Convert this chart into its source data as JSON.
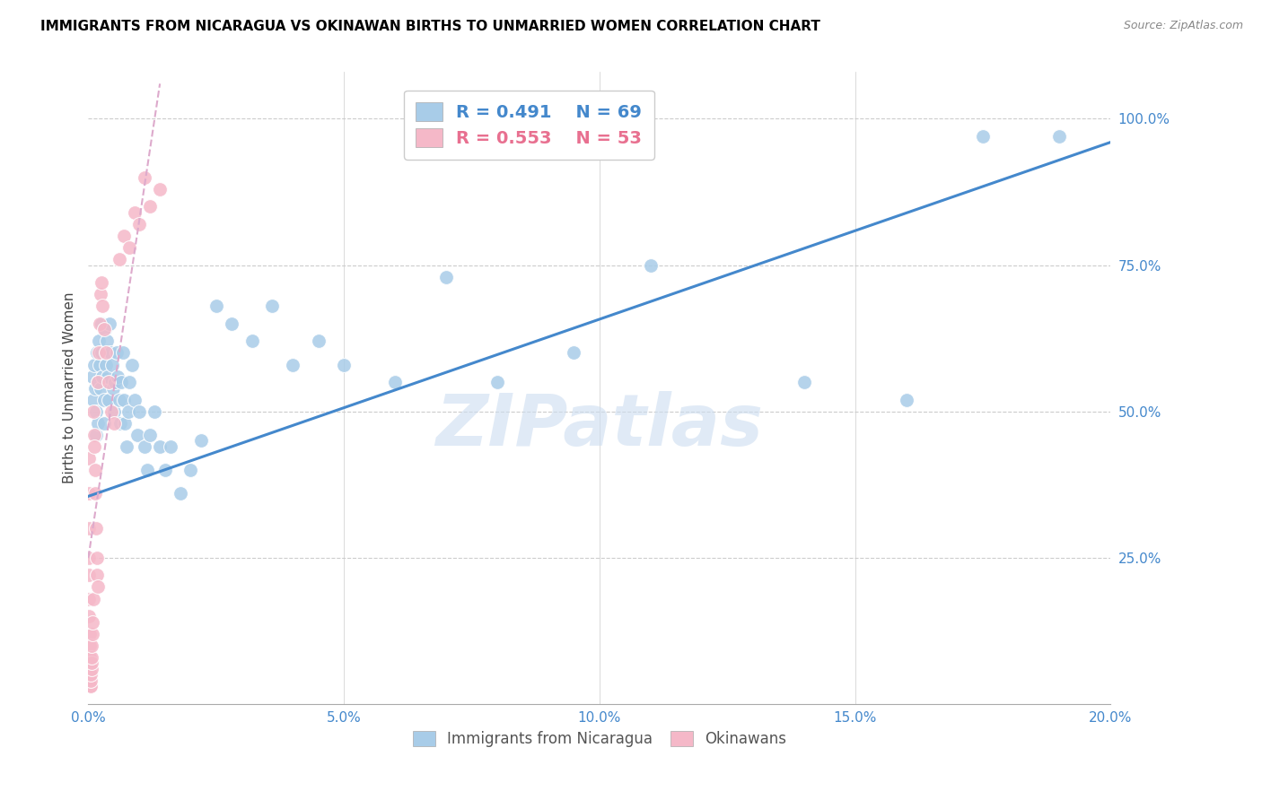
{
  "title": "IMMIGRANTS FROM NICARAGUA VS OKINAWAN BIRTHS TO UNMARRIED WOMEN CORRELATION CHART",
  "source": "Source: ZipAtlas.com",
  "xlabel_blue": "Immigrants from Nicaragua",
  "xlabel_pink": "Okinawans",
  "ylabel": "Births to Unmarried Women",
  "x_min": 0.0,
  "x_max": 0.2,
  "y_min": 0.0,
  "y_max": 1.08,
  "yticks": [
    0.25,
    0.5,
    0.75,
    1.0
  ],
  "ytick_labels": [
    "25.0%",
    "50.0%",
    "75.0%",
    "100.0%"
  ],
  "xticks": [
    0.0,
    0.05,
    0.1,
    0.15,
    0.2
  ],
  "xtick_labels": [
    "0.0%",
    "5.0%",
    "10.0%",
    "15.0%",
    "20.0%"
  ],
  "blue_R": 0.491,
  "blue_N": 69,
  "pink_R": 0.553,
  "pink_N": 53,
  "blue_color": "#a8cce8",
  "pink_color": "#f5b8c8",
  "blue_line_color": "#4488cc",
  "pink_line_color": "#e87090",
  "watermark": "ZIPatlas",
  "blue_scatter_x": [
    0.0008,
    0.001,
    0.0012,
    0.0013,
    0.0015,
    0.0015,
    0.0016,
    0.0018,
    0.0018,
    0.002,
    0.0022,
    0.0024,
    0.0025,
    0.0026,
    0.0028,
    0.003,
    0.003,
    0.0032,
    0.0034,
    0.0036,
    0.0038,
    0.004,
    0.0042,
    0.0044,
    0.0046,
    0.0048,
    0.005,
    0.0052,
    0.0055,
    0.0058,
    0.006,
    0.0062,
    0.0065,
    0.0068,
    0.007,
    0.0072,
    0.0075,
    0.0078,
    0.008,
    0.0085,
    0.009,
    0.0095,
    0.01,
    0.011,
    0.0115,
    0.012,
    0.013,
    0.014,
    0.015,
    0.016,
    0.018,
    0.02,
    0.022,
    0.025,
    0.028,
    0.032,
    0.036,
    0.04,
    0.045,
    0.05,
    0.06,
    0.07,
    0.08,
    0.095,
    0.11,
    0.14,
    0.16,
    0.175,
    0.19
  ],
  "blue_scatter_y": [
    0.56,
    0.52,
    0.58,
    0.54,
    0.5,
    0.46,
    0.6,
    0.55,
    0.48,
    0.62,
    0.58,
    0.54,
    0.65,
    0.6,
    0.56,
    0.52,
    0.48,
    0.64,
    0.58,
    0.62,
    0.56,
    0.52,
    0.65,
    0.6,
    0.58,
    0.54,
    0.5,
    0.55,
    0.6,
    0.56,
    0.52,
    0.48,
    0.55,
    0.6,
    0.52,
    0.48,
    0.44,
    0.5,
    0.55,
    0.58,
    0.52,
    0.46,
    0.5,
    0.44,
    0.4,
    0.46,
    0.5,
    0.44,
    0.4,
    0.44,
    0.36,
    0.4,
    0.45,
    0.68,
    0.65,
    0.62,
    0.68,
    0.58,
    0.62,
    0.58,
    0.55,
    0.73,
    0.55,
    0.6,
    0.75,
    0.55,
    0.52,
    0.97,
    0.97
  ],
  "pink_scatter_x": [
    5e-05,
    8e-05,
    0.0001,
    0.00012,
    0.00014,
    0.00016,
    0.00018,
    0.0002,
    0.00022,
    0.00025,
    0.00028,
    0.0003,
    0.00033,
    0.00036,
    0.0004,
    0.00044,
    0.00048,
    0.00052,
    0.00056,
    0.0006,
    0.00065,
    0.0007,
    0.00075,
    0.0008,
    0.0009,
    0.001,
    0.0011,
    0.0012,
    0.0013,
    0.0014,
    0.0015,
    0.0016,
    0.0017,
    0.0018,
    0.0019,
    0.002,
    0.0022,
    0.0024,
    0.0026,
    0.0028,
    0.003,
    0.0035,
    0.004,
    0.0045,
    0.005,
    0.006,
    0.007,
    0.008,
    0.009,
    0.01,
    0.011,
    0.012,
    0.014
  ],
  "pink_scatter_y": [
    0.42,
    0.36,
    0.3,
    0.25,
    0.22,
    0.18,
    0.15,
    0.12,
    0.1,
    0.08,
    0.07,
    0.06,
    0.05,
    0.04,
    0.03,
    0.03,
    0.04,
    0.05,
    0.06,
    0.07,
    0.08,
    0.1,
    0.12,
    0.14,
    0.18,
    0.5,
    0.46,
    0.44,
    0.4,
    0.36,
    0.3,
    0.25,
    0.22,
    0.2,
    0.55,
    0.6,
    0.65,
    0.7,
    0.72,
    0.68,
    0.64,
    0.6,
    0.55,
    0.5,
    0.48,
    0.76,
    0.8,
    0.78,
    0.84,
    0.82,
    0.9,
    0.85,
    0.88
  ],
  "blue_trend_x": [
    0.0,
    0.2
  ],
  "blue_trend_y": [
    0.355,
    0.96
  ],
  "pink_trend_x": [
    0.0,
    0.014
  ],
  "pink_trend_y": [
    0.25,
    1.06
  ]
}
